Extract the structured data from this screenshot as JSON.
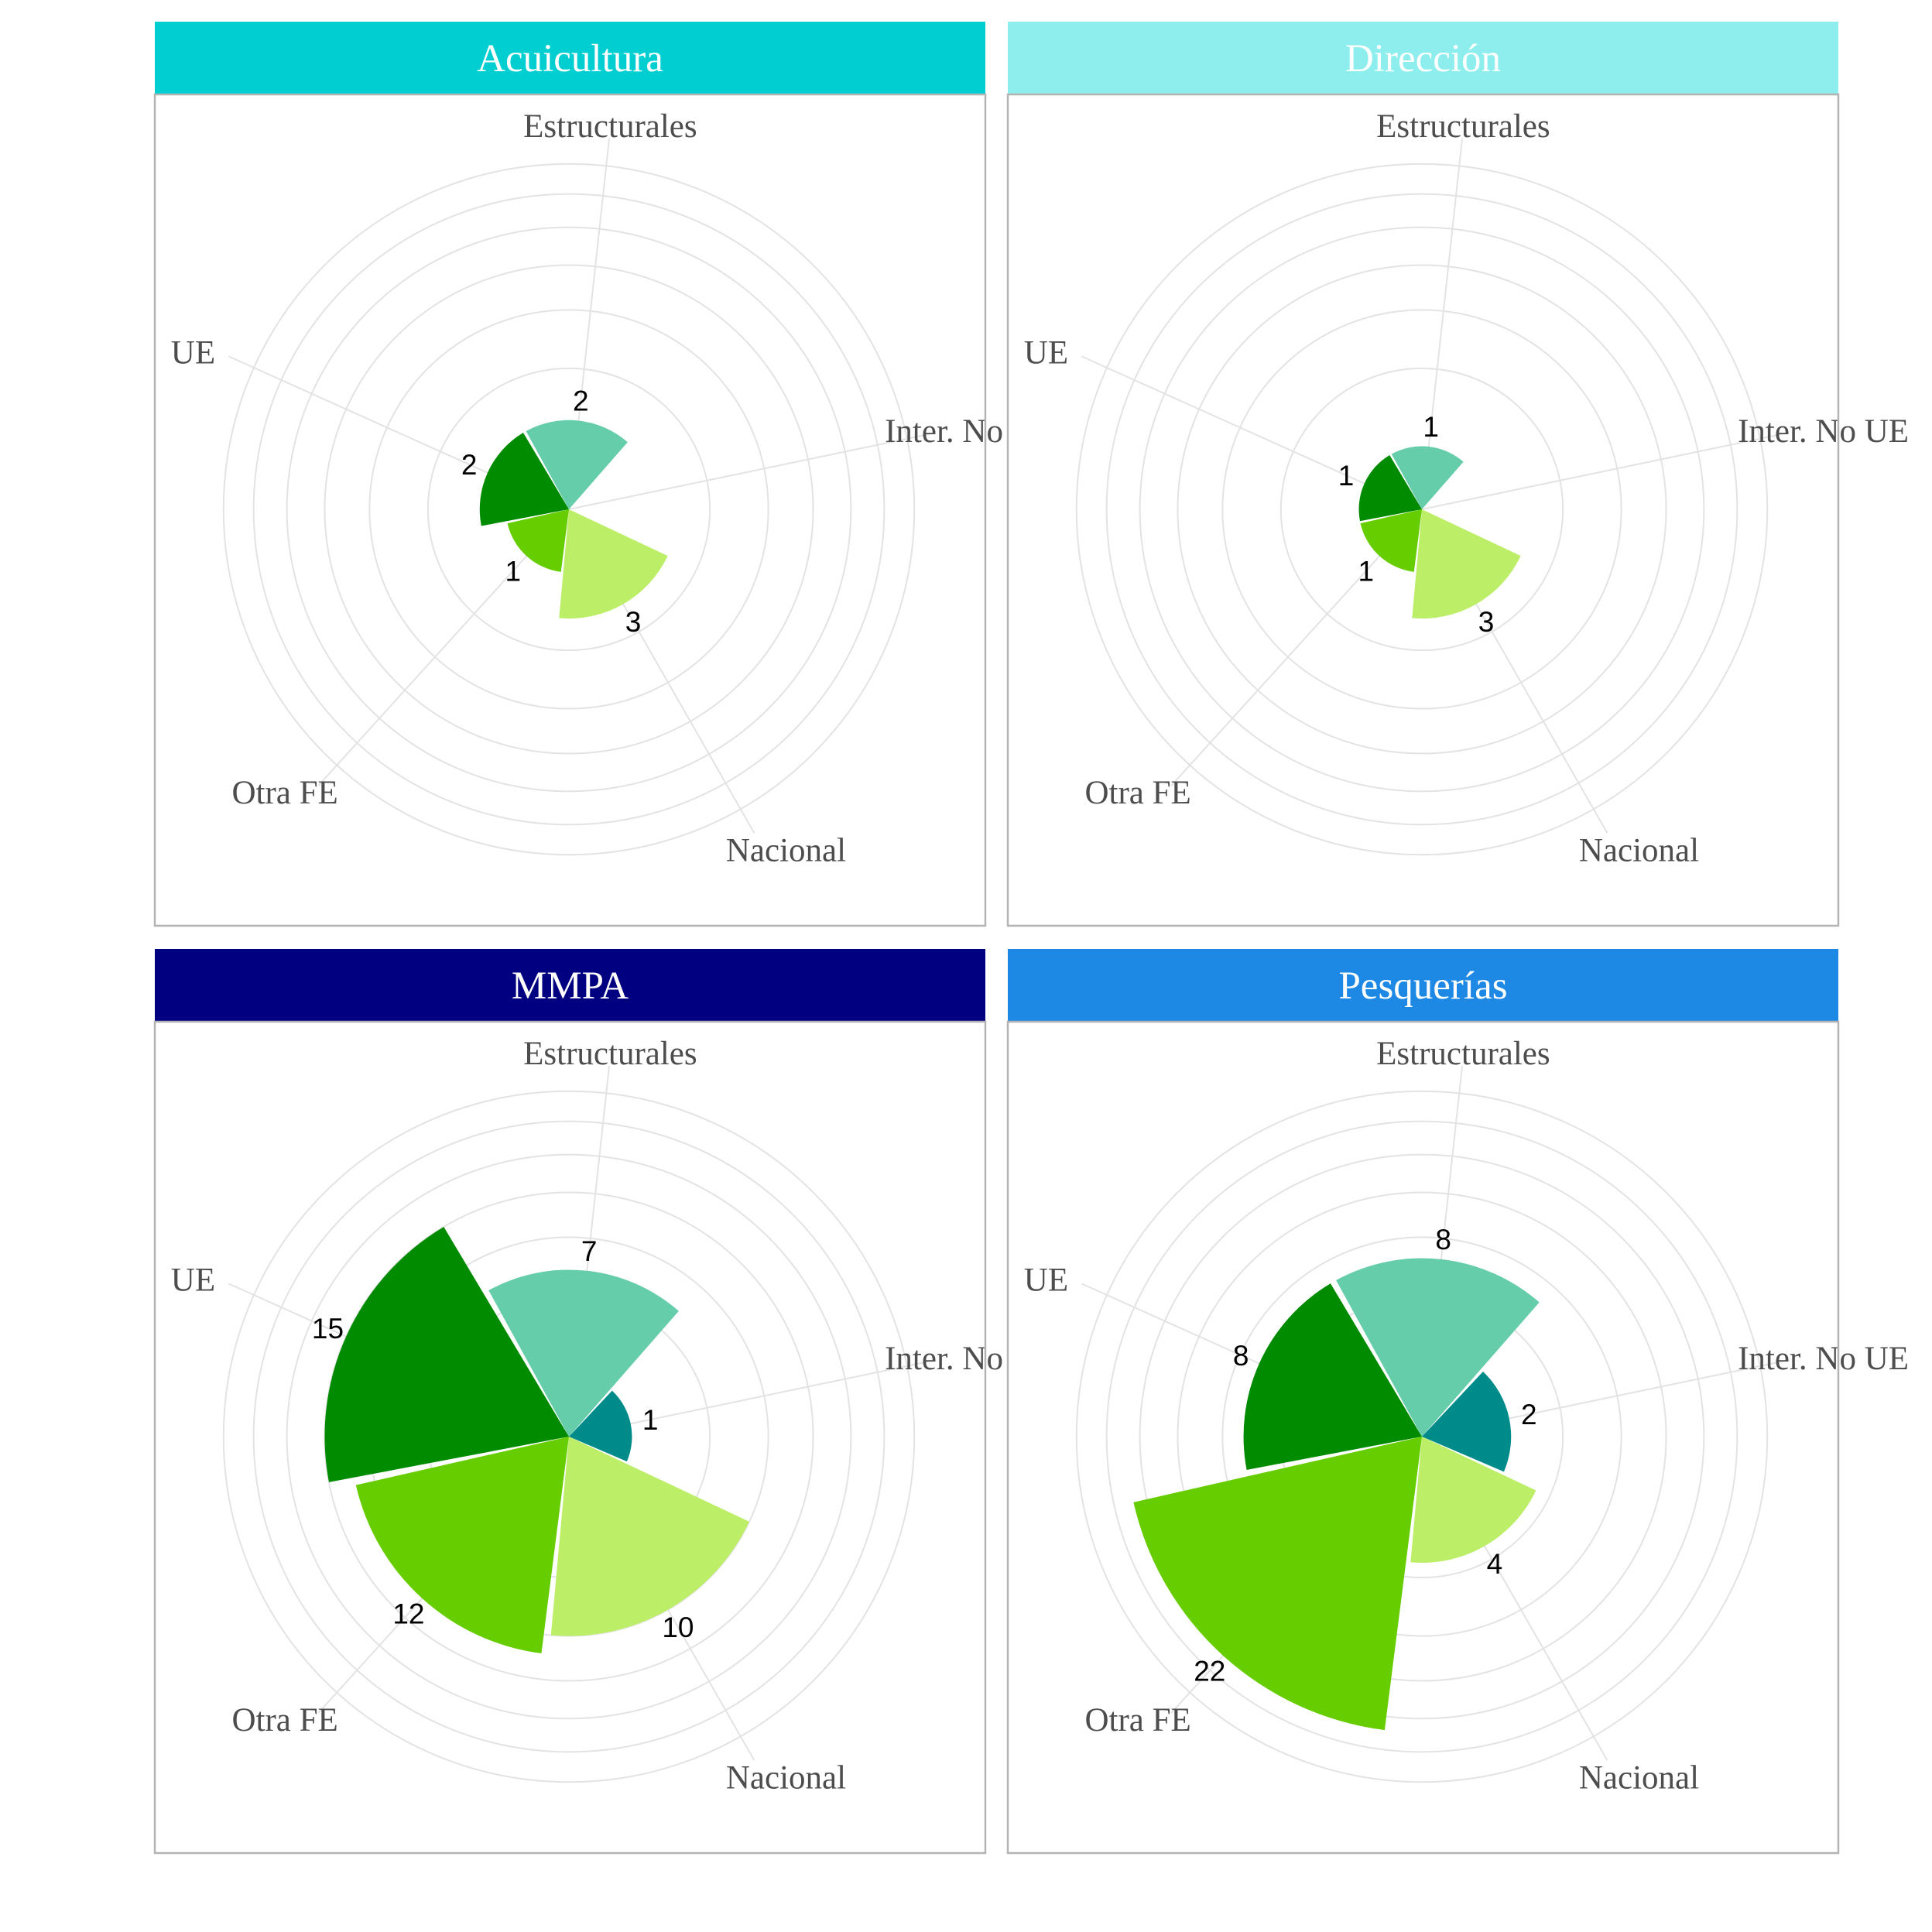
{
  "chart_data": {
    "type": "polar-bar",
    "title": "",
    "categories": [
      "Estructurales",
      "Inter. No UE",
      "Nacional",
      "Otra FE",
      "UE"
    ],
    "colors": {
      "Estructurales": "#66CDAA",
      "Inter. No UE": "#008B8B",
      "Nacional": "#BCEE68",
      "Otra FE": "#66CD00",
      "UE": "#008B00"
    },
    "radial_max": 35,
    "grid": true,
    "legend": "none",
    "panels": [
      {
        "name": "Acuicultura",
        "strip_color": "#00CED1",
        "values": {
          "Estructurales": 2,
          "Nacional": 3,
          "Otra FE": 1,
          "UE": 2
        }
      },
      {
        "name": "Dirección",
        "strip_color": "#8EEEEE",
        "values": {
          "Estructurales": 1,
          "Nacional": 3,
          "Otra FE": 1,
          "UE": 1
        }
      },
      {
        "name": "MMPA",
        "strip_color": "#000080",
        "values": {
          "Estructurales": 7,
          "Inter. No UE": 1,
          "Nacional": 10,
          "Otra FE": 12,
          "UE": 15
        }
      },
      {
        "name": "Pesquerías",
        "strip_color": "#1E88E5",
        "values": {
          "Estructurales": 8,
          "Inter. No UE": 2,
          "Nacional": 4,
          "Otra FE": 22,
          "UE": 8
        }
      }
    ]
  }
}
